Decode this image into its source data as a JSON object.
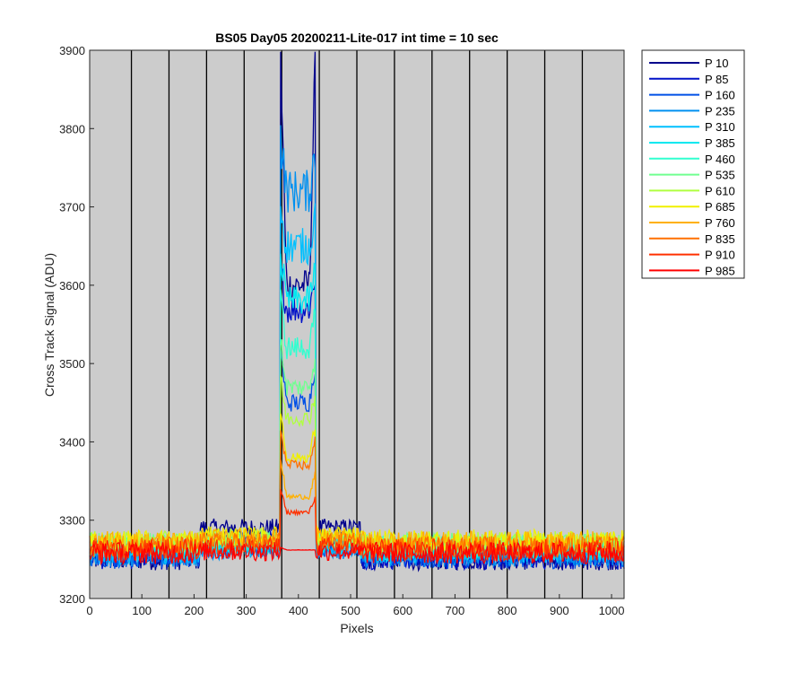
{
  "chart_data": {
    "type": "line",
    "title": "BS05 Day05 20200211-Lite-017 int time = 10 sec",
    "xlabel": "Pixels",
    "ylabel": "Cross Track Signal (ADU)",
    "xlim": [
      0,
      1024
    ],
    "ylim": [
      3200,
      3900
    ],
    "xticks": [
      0,
      100,
      200,
      300,
      400,
      500,
      600,
      700,
      800,
      900,
      1000
    ],
    "yticks": [
      3200,
      3300,
      3400,
      3500,
      3600,
      3700,
      3800,
      3900
    ],
    "xtick_labels": [
      "0",
      "100",
      "200",
      "300",
      "400",
      "500",
      "600",
      "700",
      "800",
      "900",
      "1000"
    ],
    "ytick_labels": [
      "3200",
      "3300",
      "3400",
      "3500",
      "3600",
      "3700",
      "3800",
      "3900"
    ],
    "vertical_lines_x": [
      80,
      152,
      224,
      296,
      368,
      440,
      512,
      584,
      656,
      728,
      800,
      872,
      944
    ],
    "plot_background": "#cccccc",
    "legend_position": "outside-right",
    "series": [
      {
        "name": "P 10",
        "color": "#00008c",
        "baseline": 3250,
        "inside": [
          3600,
          3895,
          3880
        ],
        "shoulder": 3290
      },
      {
        "name": "P 85",
        "color": "#0010c8",
        "baseline": 3251,
        "inside": [
          3570,
          3620,
          3610
        ],
        "shoulder": 3275
      },
      {
        "name": "P 160",
        "color": "#0050e6",
        "baseline": 3252,
        "inside": [
          3450,
          3520,
          3500
        ],
        "shoulder": 3265
      },
      {
        "name": "P 235",
        "color": "#0090f0",
        "baseline": 3254,
        "inside": [
          3720,
          3790,
          3770
        ],
        "shoulder": 3262
      },
      {
        "name": "P 310",
        "color": "#00c0ff",
        "baseline": 3258,
        "inside": [
          3650,
          3700,
          3690
        ],
        "shoulder": 3265
      },
      {
        "name": "P 385",
        "color": "#00e8f0",
        "baseline": 3262,
        "inside": [
          3580,
          3640,
          3620
        ],
        "shoulder": 3268
      },
      {
        "name": "P 460",
        "color": "#30ffd0",
        "baseline": 3266,
        "inside": [
          3520,
          3580,
          3560
        ],
        "shoulder": 3272
      },
      {
        "name": "P 535",
        "color": "#70ff90",
        "baseline": 3270,
        "inside": [
          3470,
          3530,
          3510
        ],
        "shoulder": 3276
      },
      {
        "name": "P 610",
        "color": "#b0ff40",
        "baseline": 3272,
        "inside": [
          3430,
          3480,
          3460
        ],
        "shoulder": 3278
      },
      {
        "name": "P 685",
        "color": "#f0f000",
        "baseline": 3274,
        "inside": [
          3380,
          3440,
          3420
        ],
        "shoulder": 3280
      },
      {
        "name": "P 760",
        "color": "#ffb000",
        "baseline": 3272,
        "inside": [
          3330,
          3380,
          3360
        ],
        "shoulder": 3278
      },
      {
        "name": "P 835",
        "color": "#ff7000",
        "baseline": 3266,
        "inside": [
          3370,
          3420,
          3400
        ],
        "shoulder": 3272
      },
      {
        "name": "P 910",
        "color": "#ff3000",
        "baseline": 3262,
        "inside": [
          3310,
          3340,
          3330
        ],
        "shoulder": 3266
      },
      {
        "name": "P 985",
        "color": "#ff0000",
        "baseline": 3258,
        "inside": [
          3262,
          3265,
          3262
        ],
        "shoulder": 3260
      }
    ]
  }
}
